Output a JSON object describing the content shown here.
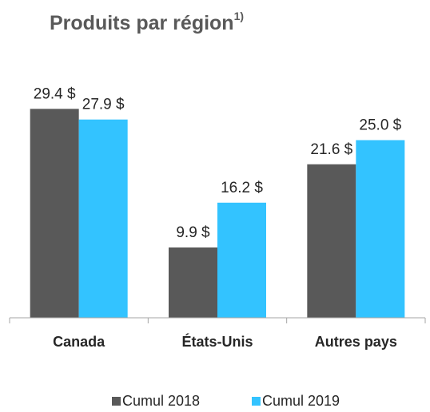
{
  "chart_data": {
    "type": "bar",
    "title": "Produits par région",
    "title_note": "1)",
    "categories": [
      "Canada",
      "États-Unis",
      "Autres pays"
    ],
    "series": [
      {
        "name": "Cumul 2018",
        "color": "#595959",
        "values": [
          29.4,
          9.9,
          21.6
        ],
        "value_labels": [
          "29.4 $",
          "9.9 $",
          "21.6 $"
        ]
      },
      {
        "name": "Cumul 2019",
        "color": "#33c3ff",
        "values": [
          27.9,
          16.2,
          25.0
        ],
        "value_labels": [
          "27.9 $",
          "16.2 $",
          "25.0 $"
        ]
      }
    ],
    "ylim": [
      0,
      30
    ]
  }
}
